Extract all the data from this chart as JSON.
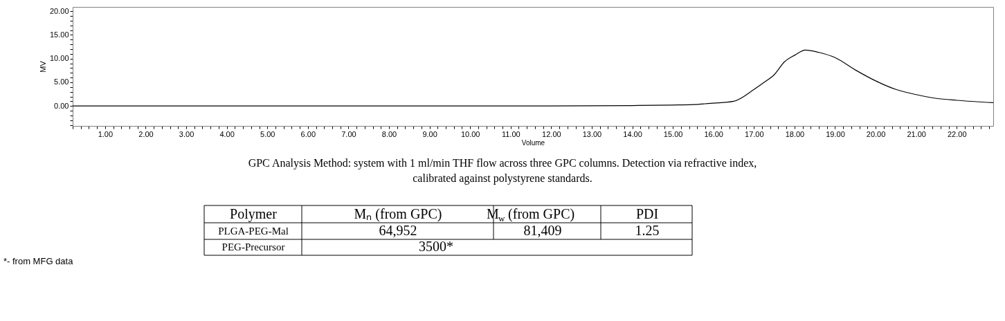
{
  "chart_data": {
    "type": "line",
    "xlabel": "Volume",
    "ylabel": "MV",
    "x": [
      0.2,
      2.0,
      4.0,
      6.0,
      8.0,
      10.0,
      12.0,
      14.0,
      15.0,
      15.5,
      16.0,
      16.5,
      17.0,
      17.25,
      17.5,
      17.75,
      18.0,
      18.27,
      18.6,
      19.0,
      19.5,
      20.0,
      20.5,
      21.0,
      21.5,
      22.0,
      22.9
    ],
    "series": [
      {
        "color": "#000000",
        "values": [
          0.0,
          0.0,
          0.0,
          0.0,
          0.0,
          0.0,
          0.0,
          0.1,
          0.2,
          0.3,
          0.6,
          1.0,
          3.5,
          5.0,
          6.6,
          9.3,
          10.7,
          11.8,
          11.3,
          10.2,
          7.6,
          5.3,
          3.5,
          2.4,
          1.6,
          1.2,
          0.7
        ]
      }
    ],
    "xlim": [
      0.2,
      22.9
    ],
    "ylim": [
      -4.2,
      20.9
    ],
    "xticks": [
      {
        "value": 0.2,
        "label": null
      },
      {
        "value": 0.4,
        "label": null
      },
      {
        "value": 0.6,
        "label": null
      },
      {
        "value": 0.8,
        "label": null
      },
      {
        "value": 1,
        "label": "1.00"
      },
      {
        "value": 1.2,
        "label": null
      },
      {
        "value": 1.4,
        "label": null
      },
      {
        "value": 1.6,
        "label": null
      },
      {
        "value": 1.8,
        "label": null
      },
      {
        "value": 2,
        "label": "2.00"
      },
      {
        "value": 2.2,
        "label": null
      },
      {
        "value": 2.4,
        "label": null
      },
      {
        "value": 2.6,
        "label": null
      },
      {
        "value": 2.8,
        "label": null
      },
      {
        "value": 3,
        "label": "3.00"
      },
      {
        "value": 3.2,
        "label": null
      },
      {
        "value": 3.4,
        "label": null
      },
      {
        "value": 3.6,
        "label": null
      },
      {
        "value": 3.8,
        "label": null
      },
      {
        "value": 4,
        "label": "4.00"
      },
      {
        "value": 4.2,
        "label": null
      },
      {
        "value": 4.4,
        "label": null
      },
      {
        "value": 4.6,
        "label": null
      },
      {
        "value": 4.8,
        "label": null
      },
      {
        "value": 5,
        "label": "5.00"
      },
      {
        "value": 5.2,
        "label": null
      },
      {
        "value": 5.4,
        "label": null
      },
      {
        "value": 5.6,
        "label": null
      },
      {
        "value": 5.8,
        "label": null
      },
      {
        "value": 6,
        "label": "6.00"
      },
      {
        "value": 6.2,
        "label": null
      },
      {
        "value": 6.4,
        "label": null
      },
      {
        "value": 6.6,
        "label": null
      },
      {
        "value": 6.8,
        "label": null
      },
      {
        "value": 7,
        "label": "7.00"
      },
      {
        "value": 7.2,
        "label": null
      },
      {
        "value": 7.4,
        "label": null
      },
      {
        "value": 7.6,
        "label": null
      },
      {
        "value": 7.8,
        "label": null
      },
      {
        "value": 8,
        "label": "8.00"
      },
      {
        "value": 8.2,
        "label": null
      },
      {
        "value": 8.4,
        "label": null
      },
      {
        "value": 8.6,
        "label": null
      },
      {
        "value": 8.8,
        "label": null
      },
      {
        "value": 9,
        "label": "9.00"
      },
      {
        "value": 9.2,
        "label": null
      },
      {
        "value": 9.4,
        "label": null
      },
      {
        "value": 9.6,
        "label": null
      },
      {
        "value": 9.8,
        "label": null
      },
      {
        "value": 10,
        "label": "10.00"
      },
      {
        "value": 10.2,
        "label": null
      },
      {
        "value": 10.4,
        "label": null
      },
      {
        "value": 10.6,
        "label": null
      },
      {
        "value": 10.8,
        "label": null
      },
      {
        "value": 11,
        "label": "11.00"
      },
      {
        "value": 11.2,
        "label": null
      },
      {
        "value": 11.4,
        "label": null
      },
      {
        "value": 11.6,
        "label": null
      },
      {
        "value": 11.8,
        "label": null
      },
      {
        "value": 12,
        "label": "12.00"
      },
      {
        "value": 12.2,
        "label": null
      },
      {
        "value": 12.4,
        "label": null
      },
      {
        "value": 12.6,
        "label": null
      },
      {
        "value": 12.8,
        "label": null
      },
      {
        "value": 13,
        "label": "13.00"
      },
      {
        "value": 13.2,
        "label": null
      },
      {
        "value": 13.4,
        "label": null
      },
      {
        "value": 13.6,
        "label": null
      },
      {
        "value": 13.8,
        "label": null
      },
      {
        "value": 14,
        "label": "14.00"
      },
      {
        "value": 14.2,
        "label": null
      },
      {
        "value": 14.4,
        "label": null
      },
      {
        "value": 14.6,
        "label": null
      },
      {
        "value": 14.8,
        "label": null
      },
      {
        "value": 15,
        "label": "15.00"
      },
      {
        "value": 15.2,
        "label": null
      },
      {
        "value": 15.4,
        "label": null
      },
      {
        "value": 15.6,
        "label": null
      },
      {
        "value": 15.8,
        "label": null
      },
      {
        "value": 16,
        "label": "16.00"
      },
      {
        "value": 16.2,
        "label": null
      },
      {
        "value": 16.4,
        "label": null
      },
      {
        "value": 16.6,
        "label": null
      },
      {
        "value": 16.8,
        "label": null
      },
      {
        "value": 17,
        "label": "17.00"
      },
      {
        "value": 17.2,
        "label": null
      },
      {
        "value": 17.4,
        "label": null
      },
      {
        "value": 17.6,
        "label": null
      },
      {
        "value": 17.8,
        "label": null
      },
      {
        "value": 18,
        "label": "18.00"
      },
      {
        "value": 18.2,
        "label": null
      },
      {
        "value": 18.4,
        "label": null
      },
      {
        "value": 18.6,
        "label": null
      },
      {
        "value": 18.8,
        "label": null
      },
      {
        "value": 19,
        "label": "19.00"
      },
      {
        "value": 19.2,
        "label": null
      },
      {
        "value": 19.4,
        "label": null
      },
      {
        "value": 19.6,
        "label": null
      },
      {
        "value": 19.8,
        "label": null
      },
      {
        "value": 20,
        "label": "20.00"
      },
      {
        "value": 20.2,
        "label": null
      },
      {
        "value": 20.4,
        "label": null
      },
      {
        "value": 20.6,
        "label": null
      },
      {
        "value": 20.8,
        "label": null
      },
      {
        "value": 21,
        "label": "21.00"
      },
      {
        "value": 21.2,
        "label": null
      },
      {
        "value": 21.4,
        "label": null
      },
      {
        "value": 21.6,
        "label": null
      },
      {
        "value": 21.8,
        "label": null
      },
      {
        "value": 22,
        "label": "22.00"
      },
      {
        "value": 22.2,
        "label": null
      },
      {
        "value": 22.4,
        "label": null
      },
      {
        "value": 22.6,
        "label": null
      },
      {
        "value": 22.8,
        "label": null
      }
    ],
    "yticks": [
      {
        "value": -4,
        "label": null
      },
      {
        "value": -3,
        "label": null
      },
      {
        "value": -2,
        "label": null
      },
      {
        "value": -1,
        "label": null
      },
      {
        "value": 0,
        "label": "0.00"
      },
      {
        "value": 1,
        "label": null
      },
      {
        "value": 2,
        "label": null
      },
      {
        "value": 3,
        "label": null
      },
      {
        "value": 4,
        "label": null
      },
      {
        "value": 5,
        "label": "5.00"
      },
      {
        "value": 6,
        "label": null
      },
      {
        "value": 7,
        "label": null
      },
      {
        "value": 8,
        "label": null
      },
      {
        "value": 9,
        "label": null
      },
      {
        "value": 10,
        "label": "10.00"
      },
      {
        "value": 11,
        "label": null
      },
      {
        "value": 12,
        "label": null
      },
      {
        "value": 13,
        "label": null
      },
      {
        "value": 14,
        "label": null
      },
      {
        "value": 15,
        "label": "15.00"
      },
      {
        "value": 16,
        "label": null
      },
      {
        "value": 17,
        "label": null
      },
      {
        "value": 18,
        "label": null
      },
      {
        "value": 19,
        "label": null
      },
      {
        "value": 20,
        "label": "20.00"
      }
    ],
    "grid": false,
    "annotations": [
      "GPC Analysis Method: system with 1 ml/min THF flow across three GPC columns. Detection via refractive index, calibrated against polystyrene standards.",
      "Polymer",
      "Mₙ (from GPC)",
      "M$_{w}$ (from GPC)",
      "PDI",
      "PLGA-PEG-Mal",
      "64,952",
      "81,409",
      "1.25",
      "PEG-Precursor",
      "3500*",
      "*- from MFG data"
    ]
  }
}
